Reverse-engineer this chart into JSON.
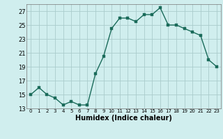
{
  "x": [
    0,
    1,
    2,
    3,
    4,
    5,
    6,
    7,
    8,
    9,
    10,
    11,
    12,
    13,
    14,
    15,
    16,
    17,
    18,
    19,
    20,
    21,
    22,
    23
  ],
  "y": [
    15,
    16,
    15,
    14.5,
    13.5,
    14,
    13.5,
    13.5,
    18,
    20.5,
    24.5,
    26,
    26,
    25.5,
    26.5,
    26.5,
    27.5,
    25,
    25,
    24.5,
    24,
    23.5,
    20,
    19
  ],
  "line_color": "#1a6b5a",
  "marker_color": "#1a6b5a",
  "bg_color": "#d0eeee",
  "grid_color": "#aacccc",
  "xlabel": "Humidex (Indice chaleur)",
  "xlim": [
    -0.5,
    23.5
  ],
  "ylim": [
    13,
    28
  ],
  "yticks": [
    13,
    15,
    17,
    19,
    21,
    23,
    25,
    27
  ],
  "xtick_labels": [
    "0",
    "1",
    "2",
    "3",
    "4",
    "5",
    "6",
    "7",
    "8",
    "9",
    "10",
    "11",
    "12",
    "13",
    "14",
    "15",
    "16",
    "17",
    "18",
    "19",
    "20",
    "21",
    "22",
    "23"
  ],
  "marker_size": 2.5,
  "line_width": 1.0
}
